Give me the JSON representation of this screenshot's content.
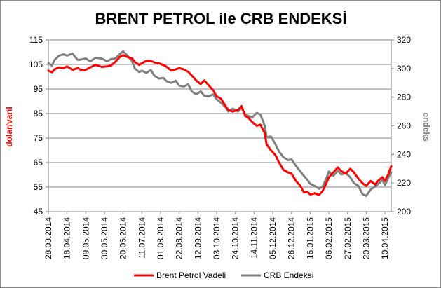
{
  "chart_data": {
    "type": "line",
    "title": "BRENT PETROL ile CRB ENDEKSİ",
    "ylabel_left": "dolar/varil",
    "ylabel_right": "endeks",
    "xlabel": "",
    "ylim_left": [
      45,
      115
    ],
    "ylim_right": [
      200,
      320
    ],
    "yticks_left": [
      45,
      55,
      65,
      75,
      85,
      95,
      105,
      115
    ],
    "yticks_right": [
      200,
      220,
      240,
      260,
      280,
      300,
      320
    ],
    "xlim": [
      "2014-03-28",
      "2015-04-17"
    ],
    "xtick_labels": [
      "28.03.2014",
      "18.04.2014",
      "09.05.2014",
      "30.05.2014",
      "20.06.2014",
      "11.07.2014",
      "01.08.2014",
      "22.08.2014",
      "12.09.2014",
      "03.10.2014",
      "24.10.2014",
      "14.11.2014",
      "05.12.2014",
      "26.12.2014",
      "16.01.2015",
      "06.02.2015",
      "27.02.2015",
      "20.03.2015",
      "10.04.2015"
    ],
    "grid": "horizontal",
    "legend_position": "bottom",
    "colors": {
      "brent": "#ff0000",
      "crb": "#808080",
      "ylabel_left": "#ff0000",
      "ylabel_right": "#808080",
      "grid": "#868686"
    },
    "series": [
      {
        "name": "Brent Petrol Vadeli",
        "axis": "left",
        "color": "#ff0000",
        "points": [
          [
            "2014-03-28",
            102.5
          ],
          [
            "2014-04-01",
            101.8
          ],
          [
            "2014-04-04",
            103.0
          ],
          [
            "2014-04-09",
            103.8
          ],
          [
            "2014-04-14",
            103.5
          ],
          [
            "2014-04-18",
            104.2
          ],
          [
            "2014-04-24",
            102.8
          ],
          [
            "2014-04-30",
            103.5
          ],
          [
            "2014-05-05",
            102.5
          ],
          [
            "2014-05-09",
            102.8
          ],
          [
            "2014-05-14",
            103.8
          ],
          [
            "2014-05-20",
            104.8
          ],
          [
            "2014-05-27",
            104.0
          ],
          [
            "2014-06-02",
            104.2
          ],
          [
            "2014-06-06",
            104.5
          ],
          [
            "2014-06-11",
            106.0
          ],
          [
            "2014-06-16",
            108.0
          ],
          [
            "2014-06-20",
            108.8
          ],
          [
            "2014-06-25",
            108.0
          ],
          [
            "2014-06-30",
            107.5
          ],
          [
            "2014-07-03",
            106.0
          ],
          [
            "2014-07-08",
            104.8
          ],
          [
            "2014-07-11",
            105.5
          ],
          [
            "2014-07-16",
            106.5
          ],
          [
            "2014-07-21",
            106.5
          ],
          [
            "2014-07-25",
            105.8
          ],
          [
            "2014-07-30",
            105.5
          ],
          [
            "2014-08-04",
            104.8
          ],
          [
            "2014-08-08",
            104.0
          ],
          [
            "2014-08-13",
            102.5
          ],
          [
            "2014-08-18",
            103.0
          ],
          [
            "2014-08-22",
            103.5
          ],
          [
            "2014-08-27",
            103.0
          ],
          [
            "2014-09-01",
            102.0
          ],
          [
            "2014-09-05",
            100.5
          ],
          [
            "2014-09-10",
            98.5
          ],
          [
            "2014-09-15",
            97.0
          ],
          [
            "2014-09-19",
            98.5
          ],
          [
            "2014-09-24",
            96.5
          ],
          [
            "2014-09-29",
            94.5
          ],
          [
            "2014-10-03",
            92.0
          ],
          [
            "2014-10-08",
            91.0
          ],
          [
            "2014-10-13",
            88.0
          ],
          [
            "2014-10-16",
            86.5
          ],
          [
            "2014-10-21",
            85.8
          ],
          [
            "2014-10-27",
            86.5
          ],
          [
            "2014-10-31",
            88.0
          ],
          [
            "2014-11-04",
            84.0
          ],
          [
            "2014-11-07",
            83.5
          ],
          [
            "2014-11-12",
            81.5
          ],
          [
            "2014-11-17",
            80.0
          ],
          [
            "2014-11-21",
            80.5
          ],
          [
            "2014-11-26",
            77.0
          ],
          [
            "2014-11-28",
            72.5
          ],
          [
            "2014-12-03",
            70.0
          ],
          [
            "2014-12-08",
            68.0
          ],
          [
            "2014-12-12",
            65.0
          ],
          [
            "2014-12-17",
            62.0
          ],
          [
            "2014-12-22",
            61.0
          ],
          [
            "2014-12-26",
            60.5
          ],
          [
            "2014-12-31",
            57.5
          ],
          [
            "2015-01-05",
            55.5
          ],
          [
            "2015-01-09",
            52.8
          ],
          [
            "2015-01-13",
            53.0
          ],
          [
            "2015-01-16",
            52.0
          ],
          [
            "2015-01-21",
            52.5
          ],
          [
            "2015-01-26",
            51.8
          ],
          [
            "2015-01-30",
            53.5
          ],
          [
            "2015-02-03",
            56.5
          ],
          [
            "2015-02-06",
            59.0
          ],
          [
            "2015-02-11",
            61.0
          ],
          [
            "2015-02-16",
            63.0
          ],
          [
            "2015-02-20",
            61.5
          ],
          [
            "2015-02-25",
            60.5
          ],
          [
            "2015-03-02",
            62.5
          ],
          [
            "2015-03-06",
            61.0
          ],
          [
            "2015-03-11",
            58.5
          ],
          [
            "2015-03-16",
            56.5
          ],
          [
            "2015-03-20",
            55.5
          ],
          [
            "2015-03-25",
            57.5
          ],
          [
            "2015-03-30",
            56.0
          ],
          [
            "2015-04-02",
            57.5
          ],
          [
            "2015-04-07",
            59.0
          ],
          [
            "2015-04-10",
            57.5
          ],
          [
            "2015-04-14",
            60.5
          ],
          [
            "2015-04-17",
            63.5
          ]
        ]
      },
      {
        "name": "CRB Endeksi",
        "axis": "right",
        "color": "#808080",
        "points": [
          [
            "2014-03-28",
            304.0
          ],
          [
            "2014-04-01",
            302.0
          ],
          [
            "2014-04-04",
            306.0
          ],
          [
            "2014-04-09",
            309.0
          ],
          [
            "2014-04-14",
            310.0
          ],
          [
            "2014-04-18",
            309.0
          ],
          [
            "2014-04-24",
            310.5
          ],
          [
            "2014-04-30",
            306.0
          ],
          [
            "2014-05-05",
            306.5
          ],
          [
            "2014-05-09",
            307.0
          ],
          [
            "2014-05-14",
            305.0
          ],
          [
            "2014-05-20",
            307.5
          ],
          [
            "2014-05-27",
            307.0
          ],
          [
            "2014-06-02",
            305.0
          ],
          [
            "2014-06-06",
            306.5
          ],
          [
            "2014-06-11",
            307.0
          ],
          [
            "2014-06-16",
            310.0
          ],
          [
            "2014-06-20",
            312.0
          ],
          [
            "2014-06-25",
            309.0
          ],
          [
            "2014-06-30",
            305.0
          ],
          [
            "2014-07-03",
            300.0
          ],
          [
            "2014-07-08",
            297.5
          ],
          [
            "2014-07-11",
            298.5
          ],
          [
            "2014-07-16",
            297.0
          ],
          [
            "2014-07-21",
            299.0
          ],
          [
            "2014-07-25",
            295.0
          ],
          [
            "2014-07-30",
            293.0
          ],
          [
            "2014-08-04",
            293.5
          ],
          [
            "2014-08-08",
            291.0
          ],
          [
            "2014-08-13",
            290.0
          ],
          [
            "2014-08-18",
            291.5
          ],
          [
            "2014-08-22",
            288.0
          ],
          [
            "2014-08-27",
            287.5
          ],
          [
            "2014-09-01",
            289.0
          ],
          [
            "2014-09-05",
            284.0
          ],
          [
            "2014-09-10",
            282.0
          ],
          [
            "2014-09-15",
            284.0
          ],
          [
            "2014-09-19",
            281.0
          ],
          [
            "2014-09-24",
            280.5
          ],
          [
            "2014-09-29",
            282.0
          ],
          [
            "2014-10-03",
            278.5
          ],
          [
            "2014-10-08",
            276.0
          ],
          [
            "2014-10-13",
            273.0
          ],
          [
            "2014-10-16",
            270.0
          ],
          [
            "2014-10-21",
            272.0
          ],
          [
            "2014-10-27",
            270.0
          ],
          [
            "2014-10-31",
            272.5
          ],
          [
            "2014-11-04",
            268.0
          ],
          [
            "2014-11-07",
            267.0
          ],
          [
            "2014-11-12",
            266.0
          ],
          [
            "2014-11-17",
            269.0
          ],
          [
            "2014-11-21",
            268.0
          ],
          [
            "2014-11-26",
            260.0
          ],
          [
            "2014-11-28",
            252.0
          ],
          [
            "2014-12-03",
            252.5
          ],
          [
            "2014-12-08",
            247.0
          ],
          [
            "2014-12-12",
            242.0
          ],
          [
            "2014-12-17",
            238.0
          ],
          [
            "2014-12-22",
            236.0
          ],
          [
            "2014-12-26",
            236.5
          ],
          [
            "2014-12-31",
            232.0
          ],
          [
            "2015-01-05",
            228.0
          ],
          [
            "2015-01-09",
            225.0
          ],
          [
            "2015-01-13",
            222.0
          ],
          [
            "2015-01-16",
            219.5
          ],
          [
            "2015-01-21",
            218.0
          ],
          [
            "2015-01-26",
            216.0
          ],
          [
            "2015-01-30",
            217.5
          ],
          [
            "2015-02-03",
            223.0
          ],
          [
            "2015-02-06",
            228.0
          ],
          [
            "2015-02-11",
            225.0
          ],
          [
            "2015-02-16",
            228.5
          ],
          [
            "2015-02-20",
            226.0
          ],
          [
            "2015-02-25",
            227.0
          ],
          [
            "2015-03-02",
            224.0
          ],
          [
            "2015-03-06",
            220.0
          ],
          [
            "2015-03-11",
            218.0
          ],
          [
            "2015-03-16",
            212.0
          ],
          [
            "2015-03-20",
            211.0
          ],
          [
            "2015-03-25",
            215.5
          ],
          [
            "2015-03-30",
            217.5
          ],
          [
            "2015-04-02",
            219.0
          ],
          [
            "2015-04-07",
            222.0
          ],
          [
            "2015-04-10",
            218.5
          ],
          [
            "2015-04-14",
            224.0
          ],
          [
            "2015-04-17",
            227.5
          ]
        ]
      }
    ]
  }
}
